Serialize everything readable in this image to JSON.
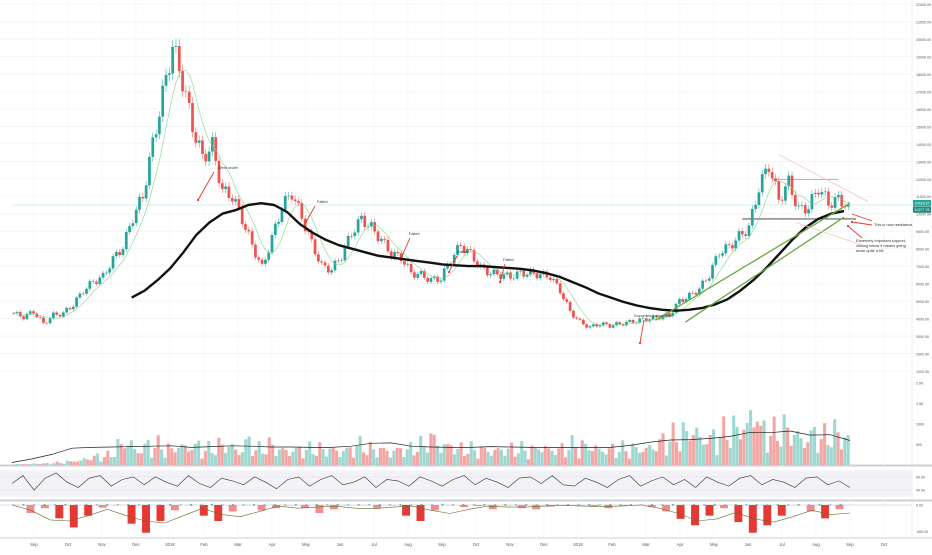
{
  "chart_data": {
    "type": "candlestick",
    "time_axis": {
      "labels": [
        "Sep",
        "Oct",
        "Nov",
        "Dec",
        "2018",
        "Feb",
        "Mar",
        "Apr",
        "May",
        "Jun",
        "Jul",
        "Aug",
        "Sep",
        "Oct",
        "Nov",
        "Dec",
        "2019",
        "Feb",
        "Mar",
        "Apr",
        "May",
        "Jun",
        "Jul",
        "Aug",
        "Sep",
        "Oct"
      ]
    },
    "price_axis": {
      "ticks": [
        "22000.00",
        "21000.00",
        "20000.00",
        "19000.00",
        "18000.00",
        "17000.00",
        "16000.00",
        "15000.00",
        "14000.00",
        "13000.00",
        "12000.00",
        "11000.00",
        "10000.00",
        "9000.00",
        "8000.00",
        "7000.00",
        "6000.00",
        "5000.00",
        "4000.00",
        "3000.00",
        "2000.00",
        "1000.00"
      ],
      "range": [
        1000,
        22000
      ]
    },
    "price_labels": {
      "last": "10516.37",
      "ma": "10277.76"
    },
    "price_series": {
      "x_index_range": [
        0,
        280
      ],
      "close": [
        4300,
        4100,
        4400,
        3700,
        4200,
        4300,
        4800,
        5600,
        6100,
        6400,
        7400,
        8100,
        9800,
        11000,
        14000,
        16800,
        19600,
        17600,
        15000,
        13200,
        13900,
        11300,
        11000,
        9700,
        8200,
        6900,
        8600,
        10400,
        11200,
        9800,
        8300,
        7000,
        6800,
        7600,
        8900,
        9700,
        9200,
        8500,
        7700,
        7500,
        6600,
        6500,
        6200,
        6300,
        7400,
        8200,
        7700,
        6900,
        6600,
        6500,
        6400,
        6600,
        6600,
        6500,
        6400,
        5600,
        4400,
        3800,
        3500,
        3700,
        3600,
        3700,
        3800,
        3900,
        4000,
        4100,
        4200,
        5000,
        5300,
        5700,
        6500,
        7800,
        8100,
        8700,
        9200,
        11500,
        12800,
        10800,
        11800,
        10200,
        10400,
        11500,
        10600,
        10800,
        10500
      ],
      "ma_line": [
        5200,
        5600,
        6200,
        6900,
        7800,
        8800,
        9500,
        10000,
        10200,
        10500,
        10600,
        10500,
        10100,
        9400,
        8900,
        8500,
        8200,
        8000,
        7800,
        7600,
        7500,
        7400,
        7300,
        7200,
        7100,
        7050,
        7000,
        7000,
        6950,
        6900,
        6850,
        6750,
        6600,
        6400,
        6100,
        5800,
        5450,
        5200,
        4950,
        4750,
        4600,
        4500,
        4450,
        4500,
        4600,
        4800,
        5100,
        5600,
        6200,
        6900,
        7700,
        8500,
        9200,
        9700,
        10000,
        10150
      ]
    },
    "resistance_levels": [
      11950,
      10500,
      9700
    ],
    "trendlines": [
      {
        "from": [
          215,
          3900
        ],
        "to": [
          280,
          10600
        ]
      },
      {
        "from": [
          225,
          3800
        ],
        "to": [
          278,
          9800
        ]
      }
    ],
    "annotations": [
      {
        "text": "Went under",
        "x_index": 62,
        "y": 11000
      },
      {
        "text": "Failed",
        "x_index": 101,
        "y": 9500
      },
      {
        "text": "Failed",
        "x_index": 133,
        "y": 8200
      },
      {
        "text": "Failed",
        "x_index": 148,
        "y": 7600
      },
      {
        "text": "Failed",
        "x_index": 165,
        "y": 7100
      },
      {
        "text": "Succeded a year later",
        "x_index": 210,
        "y": 4300
      },
      {
        "text": "This is now resistance.",
        "x_index": 282,
        "y": 10400
      },
      {
        "text": "Extremely Important support, closing below it means going down quite a bit.",
        "x_index": 282,
        "y": 9200
      }
    ],
    "volume_pane": {
      "ticks": [
        "2.0K",
        "1.5K",
        "1000",
        "500"
      ],
      "bars": [
        20,
        30,
        40,
        40,
        60,
        90,
        120,
        180,
        230,
        250,
        520,
        640,
        420,
        520,
        520,
        420,
        520,
        520,
        520,
        420,
        520,
        520,
        420,
        630,
        420,
        520,
        420,
        420,
        420,
        420,
        420,
        420,
        420,
        420,
        520,
        420,
        420,
        420,
        420,
        420,
        520,
        740,
        600,
        520,
        420,
        420,
        420,
        420,
        420,
        420,
        420,
        420,
        520,
        420,
        420,
        520,
        520,
        520,
        420,
        420,
        430,
        440,
        450,
        520,
        640,
        740,
        850,
        960,
        740,
        740,
        850,
        960,
        1060,
        1480,
        960,
        850,
        960,
        850,
        740,
        850,
        740,
        850,
        740
      ],
      "avg": [
        60,
        150,
        260,
        410,
        430,
        440,
        450,
        460,
        470,
        430,
        450,
        470,
        460,
        440,
        440,
        430,
        430,
        460,
        530,
        540,
        460,
        440,
        430,
        430,
        450,
        440,
        430,
        430,
        430,
        430,
        430,
        480,
        560,
        610,
        620,
        650,
        700,
        800,
        790,
        830,
        730,
        740,
        600
      ]
    },
    "rsi_pane": {
      "ticks": [
        "60.00",
        "40.00"
      ],
      "values": [
        50,
        62,
        40,
        58,
        66,
        52,
        44,
        58,
        62,
        46,
        56,
        60,
        48,
        60,
        52,
        46,
        62,
        50,
        44,
        58,
        54,
        48,
        60,
        52,
        42,
        56,
        60,
        46,
        56,
        62,
        48,
        52,
        60,
        44,
        56,
        54,
        46,
        60,
        54,
        46,
        56,
        62,
        48,
        58,
        52,
        44,
        58,
        60,
        50,
        62,
        48,
        46,
        58,
        52,
        44,
        56,
        62,
        46,
        54,
        60,
        48,
        56,
        44,
        60,
        52,
        46,
        58,
        62,
        48,
        56,
        52,
        44,
        58,
        60,
        48,
        54,
        44
      ]
    },
    "macd_pane": {
      "ticks": [
        "0.00",
        "-500.00"
      ],
      "hist": [
        0,
        -150,
        -60,
        -250,
        -420,
        -200,
        -50,
        0,
        -350,
        -520,
        -300,
        -100,
        0,
        -200,
        -300,
        -120,
        0,
        -100,
        -60,
        0,
        -60,
        -150,
        -80,
        0,
        0,
        -60,
        0,
        -200,
        -300,
        -100,
        0,
        -40,
        -20,
        -80,
        0,
        -60,
        -80,
        -30,
        0,
        0,
        -30,
        -60,
        -20,
        0,
        -40,
        -120,
        -260,
        -380,
        -200,
        -60,
        -320,
        -520,
        -380,
        -200,
        0,
        -120,
        -250,
        -80
      ],
      "signal": [
        0,
        -100,
        -280,
        -300,
        -200,
        -80,
        -200,
        -300,
        -340,
        -200,
        -60,
        -180,
        -220,
        -120,
        -20,
        -60,
        -40,
        -20,
        -60,
        -70,
        -40,
        -20,
        -100,
        -160,
        -80,
        -20,
        -40,
        -40,
        -20,
        -10,
        -20,
        -30,
        -20,
        0,
        -60,
        -160,
        -300,
        -260,
        -140,
        -260,
        -320,
        -220,
        -100,
        -180,
        -150
      ]
    }
  }
}
